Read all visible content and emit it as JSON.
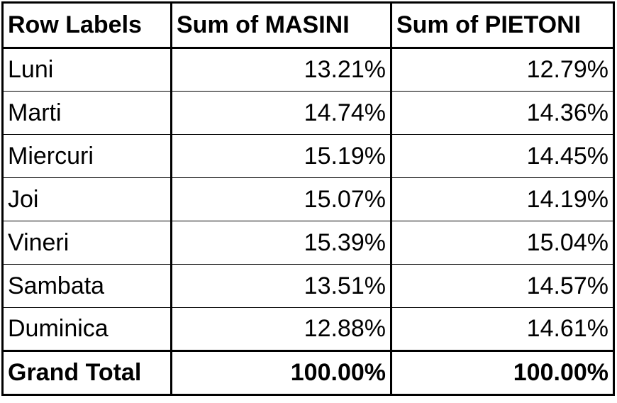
{
  "table": {
    "header": [
      "Row Labels",
      "Sum of  MASINI",
      "Sum of  PIETONI"
    ],
    "rows": [
      [
        "Luni",
        "13.21%",
        "12.79%"
      ],
      [
        "Marti",
        "14.74%",
        "14.36%"
      ],
      [
        "Miercuri",
        "15.19%",
        "14.45%"
      ],
      [
        "Joi",
        "15.07%",
        "14.19%"
      ],
      [
        "Vineri",
        "15.39%",
        "15.04%"
      ],
      [
        "Sambata",
        "13.51%",
        "14.57%"
      ],
      [
        "Duminica",
        "12.88%",
        "14.61%"
      ]
    ],
    "total": [
      "Grand Total",
      "100.00%",
      "100.00%"
    ]
  }
}
